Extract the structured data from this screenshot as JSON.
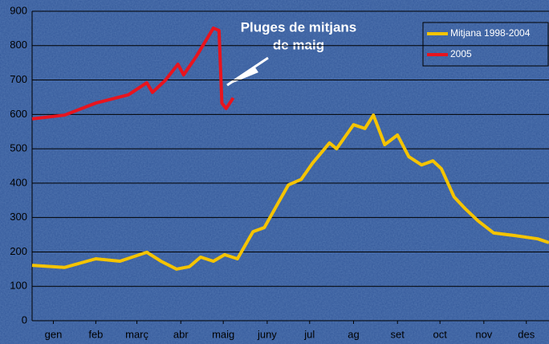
{
  "chart_data": {
    "type": "line",
    "annotation": [
      "Pluges de mitjans",
      "de maig"
    ],
    "xlim": [
      0,
      365
    ],
    "xticks": [
      {
        "value": 15,
        "label": "gen"
      },
      {
        "value": 45,
        "label": "feb"
      },
      {
        "value": 74,
        "label": "març"
      },
      {
        "value": 105,
        "label": "abr"
      },
      {
        "value": 135,
        "label": "maig"
      },
      {
        "value": 166,
        "label": "juny"
      },
      {
        "value": 196,
        "label": "jul"
      },
      {
        "value": 227,
        "label": "ag"
      },
      {
        "value": 258,
        "label": "set"
      },
      {
        "value": 288,
        "label": "oct"
      },
      {
        "value": 319,
        "label": "nov"
      },
      {
        "value": 349,
        "label": "des"
      }
    ],
    "ylim": [
      0,
      900
    ],
    "yticks": [
      0,
      100,
      200,
      300,
      400,
      500,
      600,
      700,
      800,
      900
    ],
    "grid": true,
    "legend": "upper right",
    "series": [
      {
        "name": "Mitjana 1998-2004",
        "color": "#f5c400",
        "x": [
          0,
          23,
          45,
          62,
          81,
          91,
          102,
          111,
          119,
          128,
          136,
          145,
          156,
          164,
          173,
          181,
          190,
          198,
          210,
          215,
          227,
          235,
          241,
          249,
          258,
          266,
          275,
          283,
          289,
          298,
          306,
          315,
          326,
          340,
          357,
          365
        ],
        "values": [
          161,
          155,
          180,
          173,
          199,
          173,
          150,
          157,
          185,
          173,
          192,
          180,
          259,
          271,
          337,
          395,
          411,
          458,
          517,
          500,
          570,
          559,
          598,
          512,
          540,
          477,
          453,
          465,
          442,
          360,
          325,
          290,
          255,
          248,
          238,
          227
        ]
      },
      {
        "name": "2005",
        "color": "#e8141e",
        "x": [
          0,
          23,
          45,
          68,
          81,
          85,
          94,
          103,
          107,
          116,
          128,
          132,
          134,
          137,
          142
        ],
        "values": [
          587,
          598,
          633,
          657,
          692,
          664,
          699,
          746,
          715,
          769,
          851,
          844,
          633,
          617,
          648
        ]
      }
    ]
  }
}
